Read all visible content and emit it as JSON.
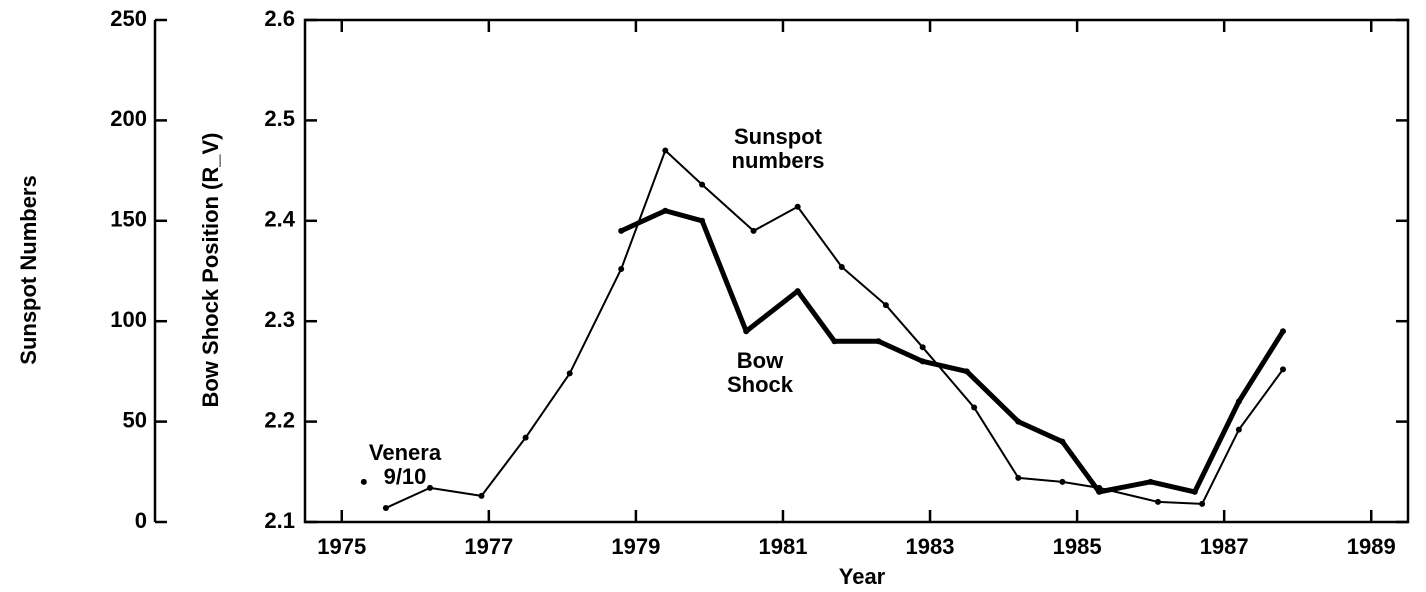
{
  "chart_data": {
    "type": "line",
    "xlabel": "Year",
    "ylabel": "Bow Shock Position (R_V)",
    "y2label": "Sunspot Numbers",
    "xlim": [
      1974.5,
      1989.5
    ],
    "xticks": [
      1975,
      1977,
      1979,
      1981,
      1983,
      1985,
      1987,
      1989
    ],
    "ylim": [
      2.1,
      2.6
    ],
    "yticks": [
      2.1,
      2.2,
      2.3,
      2.4,
      2.5,
      2.6
    ],
    "y2lim": [
      0,
      250
    ],
    "y2ticks": [
      0,
      50,
      100,
      150,
      200,
      250
    ],
    "series": [
      {
        "name": "Sunspot numbers",
        "color": "#000000",
        "axis": "y2",
        "x": [
          1975.6,
          1976.2,
          1976.9,
          1977.5,
          1978.1,
          1978.8,
          1979.4,
          1979.9,
          1980.6,
          1981.2,
          1981.8,
          1982.4,
          1982.9,
          1983.6,
          1984.2,
          1984.8,
          1985.3,
          1986.1,
          1986.7,
          1987.2,
          1987.8
        ],
        "values": [
          7,
          17,
          13,
          42,
          74,
          126,
          185,
          168,
          145,
          157,
          127,
          108,
          87,
          57,
          22,
          20,
          17,
          10,
          9,
          46,
          76
        ]
      },
      {
        "name": "Bow Shock",
        "color": "#000000",
        "x": [
          1978.8,
          1979.4,
          1979.9,
          1980.5,
          1981.2,
          1981.7,
          1982.3,
          1982.9,
          1983.5,
          1984.2,
          1984.8,
          1985.3,
          1986.0,
          1986.6,
          1987.2,
          1987.8
        ],
        "values": [
          2.39,
          2.41,
          2.4,
          2.29,
          2.33,
          2.28,
          2.28,
          2.26,
          2.25,
          2.2,
          2.18,
          2.13,
          2.14,
          2.13,
          2.22,
          2.29
        ]
      },
      {
        "name": "Venera 9/10",
        "color": "#000000",
        "x": [
          1975.3
        ],
        "values": [
          2.14
        ]
      }
    ]
  }
}
